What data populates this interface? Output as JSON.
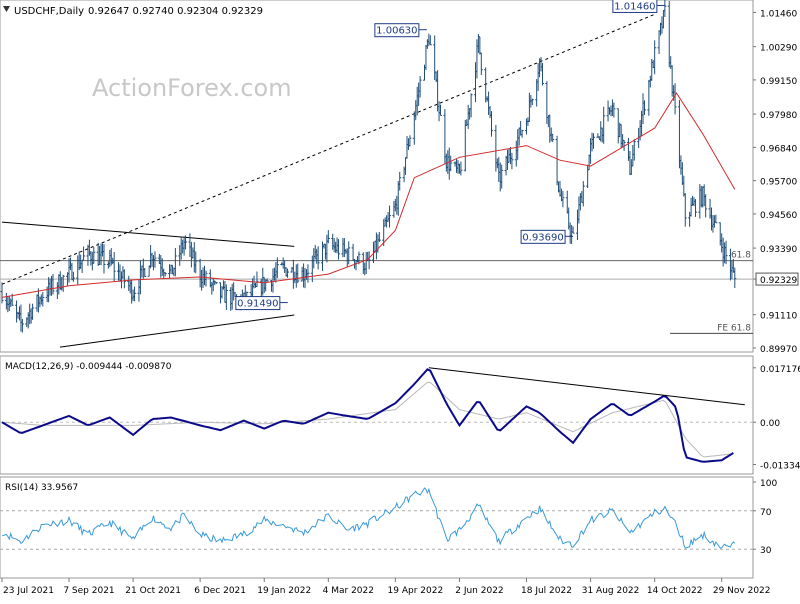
{
  "header": {
    "symbol_label": "USDCHF,Daily",
    "ohlc_values": "0.92647 0.92740 0.92304 0.92329"
  },
  "watermark": "ActionForex.com",
  "colors": {
    "bars": "#1f4e79",
    "ema": "#d32b2b",
    "macd_line": "#0b0b8a",
    "macd_signal": "#b9b9b9",
    "rsi_line": "#3a9ad9",
    "price_tag_bg": "#ffffff"
  },
  "chart_data": [
    {
      "type": "line",
      "panel": "price",
      "title": "USDCHF,Daily",
      "x_dates": [
        "23 Jul 2021",
        "7 Sep 2021",
        "21 Oct 2021",
        "6 Dec 2021",
        "19 Jan 2022",
        "4 Mar 2022",
        "19 Apr 2022",
        "2 Jun 2022",
        "18 Jul 2022",
        "31 Aug 2022",
        "14 Oct 2022",
        "29 Nov 2022"
      ],
      "y_ticks": [
        1.0146,
        1.0029,
        0.9915,
        0.9798,
        0.9684,
        0.957,
        0.9456,
        0.9339,
        0.92329,
        0.9111,
        0.8997
      ],
      "ylim": [
        0.899,
        1.0175
      ],
      "current_price": 0.92329,
      "annotations": [
        {
          "label": "1.00630",
          "value": 1.0063
        },
        {
          "label": "1.01460",
          "value": 1.0146
        },
        {
          "label": "0.93690",
          "value": 0.9369
        },
        {
          "label": "0.91490",
          "value": 0.9149
        }
      ],
      "fib_labels": [
        {
          "label": "61.8",
          "value": 0.9296
        },
        {
          "label": "FE 61.8",
          "value": 0.9047
        }
      ],
      "price_points": [
        [
          "23 Jul 2021",
          0.919
        ],
        [
          "5 Aug 2021",
          0.908
        ],
        [
          "20 Aug 2021",
          0.918
        ],
        [
          "7 Sep 2021",
          0.925
        ],
        [
          "20 Sep 2021",
          0.932
        ],
        [
          "5 Oct 2021",
          0.929
        ],
        [
          "21 Oct 2021",
          0.919
        ],
        [
          "3 Nov 2021",
          0.932
        ],
        [
          "16 Nov 2021",
          0.925
        ],
        [
          "25 Nov 2021",
          0.936
        ],
        [
          "6 Dec 2021",
          0.925
        ],
        [
          "20 Dec 2021",
          0.918
        ],
        [
          "5 Jan 2022",
          0.916
        ],
        [
          "19 Jan 2022",
          0.922
        ],
        [
          "1 Feb 2022",
          0.927
        ],
        [
          "15 Feb 2022",
          0.925
        ],
        [
          "4 Mar 2022",
          0.935
        ],
        [
          "17 Mar 2022",
          0.932
        ],
        [
          "31 Mar 2022",
          0.928
        ],
        [
          "19 Apr 2022",
          0.948
        ],
        [
          "2 May 2022",
          0.98
        ],
        [
          "12 May 2022",
          1.0063
        ],
        [
          "24 May 2022",
          0.964
        ],
        [
          "2 Jun 2022",
          0.959
        ],
        [
          "15 Jun 2022",
          1.0042
        ],
        [
          "29 Jun 2022",
          0.957
        ],
        [
          "18 Jul 2022",
          0.978
        ],
        [
          "27 Jul 2022",
          0.998
        ],
        [
          "10 Aug 2022",
          0.952
        ],
        [
          "19 Aug 2022",
          0.9369
        ],
        [
          "31 Aug 2022",
          0.968
        ],
        [
          "15 Sep 2022",
          0.982
        ],
        [
          "27 Sep 2022",
          0.961
        ],
        [
          "14 Oct 2022",
          1.0
        ],
        [
          "21 Oct 2022",
          1.0146
        ],
        [
          "4 Nov 2022",
          0.945
        ],
        [
          "16 Nov 2022",
          0.952
        ],
        [
          "29 Nov 2022",
          0.935
        ],
        [
          "8 Dec 2022",
          0.92329
        ]
      ],
      "ema_points": [
        [
          "23 Jul 2021",
          0.917
        ],
        [
          "7 Sep 2021",
          0.921
        ],
        [
          "21 Oct 2021",
          0.923
        ],
        [
          "6 Dec 2021",
          0.924
        ],
        [
          "19 Jan 2022",
          0.922
        ],
        [
          "4 Mar 2022",
          0.925
        ],
        [
          "31 Mar 2022",
          0.93
        ],
        [
          "19 Apr 2022",
          0.94
        ],
        [
          "2 May 2022",
          0.958
        ],
        [
          "2 Jun 2022",
          0.965
        ],
        [
          "18 Jul 2022",
          0.969
        ],
        [
          "10 Aug 2022",
          0.964
        ],
        [
          "31 Aug 2022",
          0.962
        ],
        [
          "14 Oct 2022",
          0.975
        ],
        [
          "29 Oct 2022",
          0.987
        ],
        [
          "16 Nov 2022",
          0.973
        ],
        [
          "8 Dec 2022",
          0.954
        ]
      ]
    },
    {
      "type": "line",
      "panel": "macd",
      "title": "MACD(12,26,9) -0.009444 -0.009870",
      "y_ticks": [
        0.01717,
        0.0,
        -0.01334
      ],
      "y_tick_labels": [
        "0.017176",
        "0.00",
        "-0.01334"
      ],
      "ylim": [
        -0.0157,
        0.019
      ],
      "macd_points": [
        [
          "23 Jul 2021",
          0.0
        ],
        [
          "5 Aug 2021",
          -0.0035
        ],
        [
          "20 Aug 2021",
          -0.001
        ],
        [
          "7 Sep 2021",
          0.002
        ],
        [
          "20 Sep 2021",
          -0.001
        ],
        [
          "5 Oct 2021",
          0.0015
        ],
        [
          "21 Oct 2021",
          -0.004
        ],
        [
          "3 Nov 2021",
          0.001
        ],
        [
          "16 Nov 2021",
          0.0015
        ],
        [
          "6 Dec 2021",
          -0.001
        ],
        [
          "20 Dec 2021",
          -0.0025
        ],
        [
          "5 Jan 2022",
          0.0005
        ],
        [
          "19 Jan 2022",
          -0.002
        ],
        [
          "1 Feb 2022",
          0.0005
        ],
        [
          "15 Feb 2022",
          -0.0005
        ],
        [
          "4 Mar 2022",
          0.003
        ],
        [
          "17 Mar 2022",
          0.002
        ],
        [
          "31 Mar 2022",
          0.001
        ],
        [
          "19 Apr 2022",
          0.006
        ],
        [
          "2 May 2022",
          0.012
        ],
        [
          "12 May 2022",
          0.0172
        ],
        [
          "24 May 2022",
          0.006
        ],
        [
          "2 Jun 2022",
          -0.001
        ],
        [
          "15 Jun 2022",
          0.007
        ],
        [
          "29 Jun 2022",
          -0.003
        ],
        [
          "18 Jul 2022",
          0.005
        ],
        [
          "27 Jul 2022",
          0.003
        ],
        [
          "10 Aug 2022",
          -0.003
        ],
        [
          "19 Aug 2022",
          -0.0065
        ],
        [
          "31 Aug 2022",
          0.001
        ],
        [
          "15 Sep 2022",
          0.006
        ],
        [
          "27 Sep 2022",
          0.002
        ],
        [
          "14 Oct 2022",
          0.0065
        ],
        [
          "21 Oct 2022",
          0.0085
        ],
        [
          "29 Oct 2022",
          0.0045
        ],
        [
          "4 Nov 2022",
          -0.011
        ],
        [
          "16 Nov 2022",
          -0.0125
        ],
        [
          "29 Nov 2022",
          -0.012
        ],
        [
          "8 Dec 2022",
          -0.0094
        ]
      ],
      "signal_points": [
        [
          "23 Jul 2021",
          0.0
        ],
        [
          "20 Aug 2021",
          -0.001
        ],
        [
          "21 Oct 2021",
          -0.001
        ],
        [
          "6 Dec 2021",
          0.0
        ],
        [
          "19 Jan 2022",
          -0.0005
        ],
        [
          "4 Mar 2022",
          0.001
        ],
        [
          "19 Apr 2022",
          0.004
        ],
        [
          "12 May 2022",
          0.013
        ],
        [
          "2 Jun 2022",
          0.004
        ],
        [
          "29 Jun 2022",
          0.001
        ],
        [
          "18 Jul 2022",
          0.003
        ],
        [
          "19 Aug 2022",
          -0.003
        ],
        [
          "15 Sep 2022",
          0.003
        ],
        [
          "21 Oct 2022",
          0.007
        ],
        [
          "4 Nov 2022",
          -0.005
        ],
        [
          "16 Nov 2022",
          -0.011
        ],
        [
          "8 Dec 2022",
          -0.0099
        ]
      ],
      "trendline": [
        [
          "12 May 2022",
          0.0172
        ],
        [
          "8 Dec 2022",
          0.0055
        ]
      ]
    },
    {
      "type": "line",
      "panel": "rsi",
      "title": "RSI(14) 33.9567",
      "y_ticks": [
        100,
        70,
        30,
        0
      ],
      "ylim": [
        0,
        100
      ],
      "levels": [
        70,
        30
      ],
      "rsi_points": [
        [
          "23 Jul 2021",
          48
        ],
        [
          "5 Aug 2021",
          38
        ],
        [
          "20 Aug 2021",
          55
        ],
        [
          "7 Sep 2021",
          60
        ],
        [
          "20 Sep 2021",
          45
        ],
        [
          "5 Oct 2021",
          58
        ],
        [
          "21 Oct 2021",
          40
        ],
        [
          "3 Nov 2021",
          63
        ],
        [
          "16 Nov 2021",
          52
        ],
        [
          "25 Nov 2021",
          65
        ],
        [
          "6 Dec 2021",
          45
        ],
        [
          "20 Dec 2021",
          38
        ],
        [
          "5 Jan 2022",
          46
        ],
        [
          "19 Jan 2022",
          60
        ],
        [
          "1 Feb 2022",
          55
        ],
        [
          "15 Feb 2022",
          47
        ],
        [
          "4 Mar 2022",
          65
        ],
        [
          "17 Mar 2022",
          50
        ],
        [
          "31 Mar 2022",
          57
        ],
        [
          "19 Apr 2022",
          73
        ],
        [
          "2 May 2022",
          87
        ],
        [
          "12 May 2022",
          92
        ],
        [
          "24 May 2022",
          40
        ],
        [
          "2 Jun 2022",
          50
        ],
        [
          "15 Jun 2022",
          75
        ],
        [
          "29 Jun 2022",
          38
        ],
        [
          "18 Jul 2022",
          63
        ],
        [
          "27 Jul 2022",
          72
        ],
        [
          "10 Aug 2022",
          40
        ],
        [
          "19 Aug 2022",
          35
        ],
        [
          "31 Aug 2022",
          60
        ],
        [
          "15 Sep 2022",
          70
        ],
        [
          "27 Sep 2022",
          47
        ],
        [
          "14 Oct 2022",
          68
        ],
        [
          "21 Oct 2022",
          72
        ],
        [
          "29 Oct 2022",
          55
        ],
        [
          "4 Nov 2022",
          33
        ],
        [
          "16 Nov 2022",
          45
        ],
        [
          "29 Nov 2022",
          32
        ],
        [
          "8 Dec 2022",
          34
        ]
      ]
    }
  ]
}
